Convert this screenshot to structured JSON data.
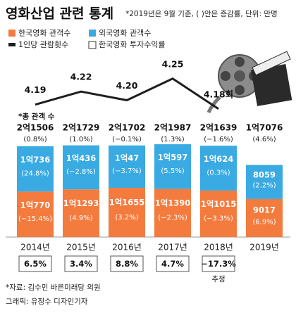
{
  "title": "영화산업 관련 통계",
  "note": "*2019년은 9월 기준, ( )안은 증감률, 단위: 만명",
  "chart_data": {
    "type": "bar",
    "stacked": true,
    "categories": [
      "2014년",
      "2015년",
      "2016년",
      "2017년",
      "2018년",
      "2019년"
    ],
    "ylim": [
      0,
      22000
    ],
    "total": {
      "name": "*총 관객 수",
      "values": [
        21506,
        21729,
        21702,
        21987,
        21639,
        17076
      ],
      "value_labels": [
        "2억1506",
        "2억1729",
        "2억1702",
        "2억1987",
        "2억1639",
        "1억7076"
      ],
      "change_labels": [
        "(0.8%)",
        "(1.0%)",
        "(−0.1%)",
        "(1.3%)",
        "(−1.6%)",
        "(4.6%)"
      ]
    },
    "series": [
      {
        "name": "한국영화 관객수",
        "color": "#f47b3e",
        "values": [
          10770,
          11293,
          11655,
          11390,
          11015,
          9017
        ],
        "value_labels": [
          "1억770",
          "1억1293",
          "1억1655",
          "1억1390",
          "1억1015",
          "9017"
        ],
        "change_labels": [
          "(−15.4%)",
          "(4.9%)",
          "(3.2%)",
          "(−2.3%)",
          "(−3.3%)",
          "(6.9%)"
        ]
      },
      {
        "name": "외국영화 관객수",
        "color": "#3aaae2",
        "values": [
          10736,
          10436,
          10047,
          10597,
          10624,
          8059
        ],
        "value_labels": [
          "1억736",
          "1억436",
          "1억47",
          "1억597",
          "1억624",
          "8059"
        ],
        "change_labels": [
          "(24.8%)",
          "(−2.8%)",
          "(−3.7%)",
          "(5.5%)",
          "(0.3%)",
          "(2.2%)"
        ]
      }
    ],
    "per_capita": {
      "name": "1인당 관람횟수",
      "color": "#1e1e1e",
      "values": [
        4.19,
        4.22,
        4.2,
        4.25,
        4.18,
        null
      ],
      "value_labels": [
        "4.19",
        "4.22",
        "4.20",
        "4.25",
        "4.18회",
        null
      ]
    },
    "y2lim": [
      4.1,
      4.3
    ],
    "roi": {
      "name": "한국영화 투자수익률",
      "values": [
        6.5,
        3.4,
        8.8,
        4.7,
        -17.3,
        null
      ],
      "value_labels": [
        "6.5%",
        "3.4%",
        "8.8%",
        "4.7%",
        "−17.3%",
        null
      ],
      "notes": [
        null,
        null,
        null,
        null,
        "추정",
        null
      ]
    }
  },
  "source": "*자료: 김수민 바른미래당 의원",
  "credit": "그래픽: 유정수 디자인기자"
}
